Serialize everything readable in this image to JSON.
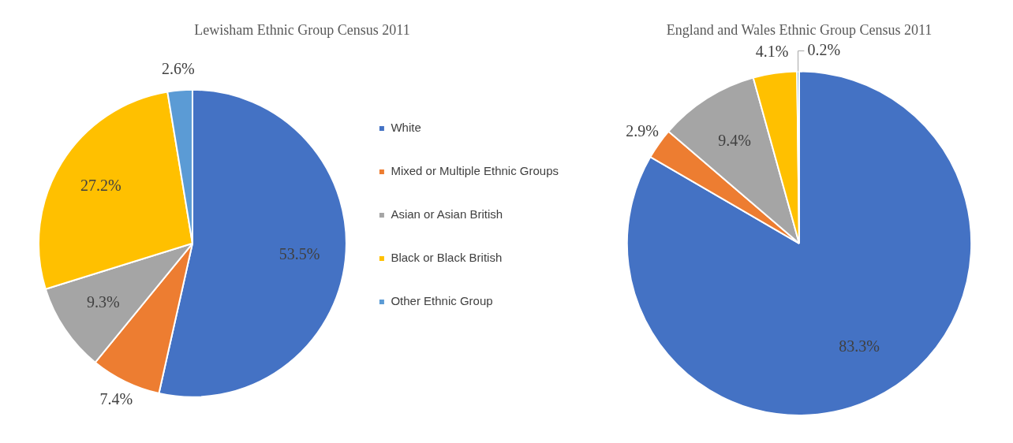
{
  "chart_data": [
    {
      "type": "pie",
      "title": "Lewisham Ethnic Group Census 2011",
      "categories": [
        "White",
        "Mixed or Multiple Ethnic Groups",
        "Asian or Asian British",
        "Black or Black British",
        "Other Ethnic Group"
      ],
      "values": [
        53.5,
        7.4,
        9.3,
        27.2,
        2.6
      ],
      "colors": [
        "#4472c4",
        "#ed7d31",
        "#a5a5a5",
        "#ffc000",
        "#5b9bd5"
      ],
      "value_labels": [
        "53.5%",
        "7.4%",
        "9.3%",
        "27.2%",
        "2.6%"
      ],
      "legend": "right"
    },
    {
      "type": "pie",
      "title": "England and Wales Ethnic Group Census 2011",
      "values": [
        83.3,
        2.9,
        9.4,
        4.1,
        0.2
      ],
      "colors": [
        "#4472c4",
        "#ed7d31",
        "#a5a5a5",
        "#ffc000",
        "#5b9bd5"
      ],
      "value_labels": [
        "83.3%",
        "2.9%",
        "9.4%",
        "4.1%",
        "0.2%"
      ],
      "legend": false
    }
  ]
}
